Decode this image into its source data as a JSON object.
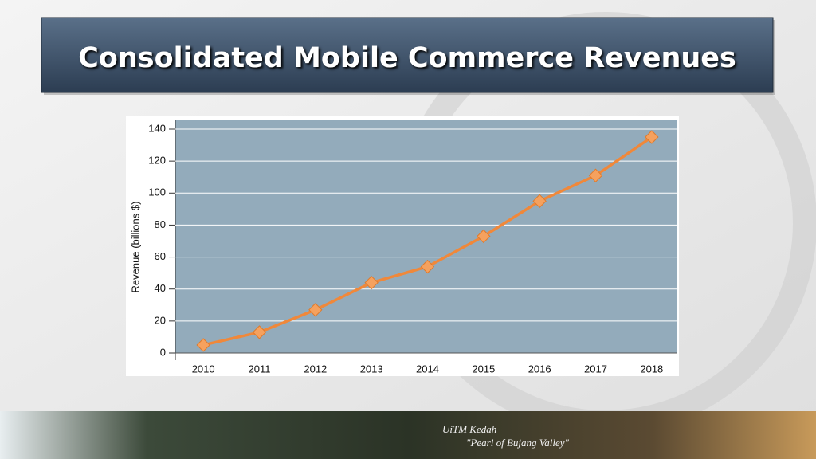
{
  "chart_data": {
    "type": "line",
    "title": "Consolidated Mobile Commerce Revenues",
    "ylabel": "Revenue (billions $)",
    "categories": [
      "2010",
      "2011",
      "2012",
      "2013",
      "2014",
      "2015",
      "2016",
      "2017",
      "2018"
    ],
    "values": [
      5,
      13,
      27,
      44,
      54,
      73,
      95,
      111,
      135
    ],
    "color": "#f0883a",
    "ylim": [
      0,
      140
    ],
    "yticks": [
      0,
      20,
      40,
      60,
      80,
      100,
      120,
      140
    ],
    "grid": true
  },
  "footer": {
    "line1": "UiTM Kedah",
    "line2": "\"Pearl of Bujang Valley\""
  }
}
